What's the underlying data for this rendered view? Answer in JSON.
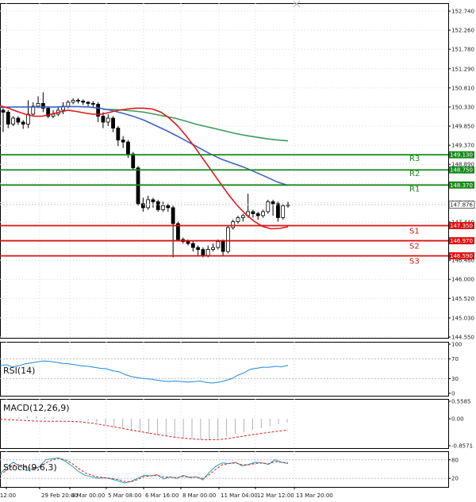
{
  "chart_data": {
    "type": "candlestick",
    "time_labels": [
      "12:00",
      "29 Feb 20:00",
      "4 Mar 00:00",
      "5 Mar 08:00",
      "6 Mar 16:00",
      "8 Mar 00:00",
      "11 Mar 04:00",
      "12 Mar 12:00",
      "13 Mar 20:00"
    ],
    "price_axis": {
      "ticks": [
        "152.740",
        "152.260",
        "151.780",
        "151.290",
        "150.810",
        "150.330",
        "149.850",
        "149.370",
        "148.890",
        "148.410",
        "147.930",
        "147.440",
        "146.960",
        "146.480",
        "146.000",
        "145.520",
        "145.030",
        "144.550"
      ],
      "range": [
        144.55,
        152.74
      ]
    },
    "current_price": "147.876",
    "levels": [
      {
        "name": "R3",
        "value": "149.130",
        "color": "#1a8a1a"
      },
      {
        "name": "R2",
        "value": "148.750",
        "color": "#1a8a1a"
      },
      {
        "name": "R1",
        "value": "148.370",
        "color": "#1a8a1a"
      },
      {
        "name": "S1",
        "value": "147.350",
        "color": "#dd1111"
      },
      {
        "name": "S2",
        "value": "146.970",
        "color": "#dd1111"
      },
      {
        "name": "S3",
        "value": "146.590",
        "color": "#dd1111"
      }
    ],
    "candles": [
      [
        150.25,
        150.2,
        149.7,
        150.3
      ],
      [
        150.2,
        149.9,
        149.8,
        150.25
      ],
      [
        149.9,
        150.05,
        149.85,
        150.1
      ],
      [
        150.05,
        149.95,
        149.88,
        150.1
      ],
      [
        149.95,
        149.9,
        149.78,
        150.0
      ],
      [
        149.9,
        150.15,
        149.8,
        150.5
      ],
      [
        150.15,
        150.35,
        150.1,
        150.45
      ],
      [
        150.35,
        150.42,
        150.3,
        150.6
      ],
      [
        150.42,
        150.3,
        150.2,
        150.7
      ],
      [
        150.3,
        150.1,
        150.05,
        150.35
      ],
      [
        150.1,
        150.15,
        150.05,
        150.25
      ],
      [
        150.15,
        150.25,
        150.1,
        150.35
      ],
      [
        150.25,
        150.35,
        150.15,
        150.45
      ],
      [
        150.35,
        150.45,
        150.3,
        150.5
      ],
      [
        150.45,
        150.5,
        150.4,
        150.55
      ],
      [
        150.5,
        150.48,
        150.42,
        150.55
      ],
      [
        150.48,
        150.45,
        150.38,
        150.52
      ],
      [
        150.45,
        150.42,
        150.35,
        150.48
      ],
      [
        150.42,
        150.4,
        150.3,
        150.48
      ],
      [
        150.4,
        150.1,
        149.95,
        150.45
      ],
      [
        150.1,
        149.95,
        149.8,
        150.2
      ],
      [
        149.95,
        150.05,
        149.85,
        150.15
      ],
      [
        150.05,
        149.8,
        149.7,
        150.1
      ],
      [
        149.8,
        149.5,
        149.35,
        149.85
      ],
      [
        149.5,
        149.45,
        149.3,
        149.6
      ],
      [
        149.45,
        149.15,
        149.05,
        149.5
      ],
      [
        149.15,
        148.8,
        148.75,
        149.2
      ],
      [
        148.8,
        147.9,
        147.85,
        148.85
      ],
      [
        147.9,
        147.8,
        147.7,
        148.05
      ],
      [
        147.8,
        148.0,
        147.75,
        148.1
      ],
      [
        148.0,
        147.95,
        147.8,
        148.05
      ],
      [
        147.95,
        147.75,
        147.7,
        148.0
      ],
      [
        147.75,
        147.85,
        147.7,
        147.95
      ],
      [
        147.85,
        147.8,
        147.7,
        147.9
      ],
      [
        147.8,
        147.4,
        146.55,
        147.85
      ],
      [
        147.4,
        147.0,
        146.95,
        147.45
      ],
      [
        147.0,
        146.95,
        146.9,
        147.05
      ],
      [
        146.95,
        146.9,
        146.85,
        147.0
      ],
      [
        146.9,
        146.8,
        146.7,
        146.95
      ],
      [
        146.8,
        146.75,
        146.6,
        146.85
      ],
      [
        146.75,
        146.6,
        146.55,
        146.8
      ],
      [
        146.6,
        146.75,
        146.55,
        146.85
      ],
      [
        146.75,
        146.8,
        146.7,
        146.9
      ],
      [
        146.8,
        146.95,
        146.75,
        147.0
      ],
      [
        146.95,
        146.7,
        146.6,
        147.0
      ],
      [
        146.7,
        147.3,
        146.65,
        147.35
      ],
      [
        147.3,
        147.45,
        147.25,
        147.5
      ],
      [
        147.45,
        147.55,
        147.4,
        147.6
      ],
      [
        147.55,
        147.6,
        147.45,
        147.65
      ],
      [
        147.6,
        147.7,
        147.55,
        148.15
      ],
      [
        147.7,
        147.65,
        147.55,
        147.75
      ],
      [
        147.65,
        147.6,
        147.5,
        147.7
      ],
      [
        147.6,
        147.7,
        147.55,
        147.75
      ],
      [
        147.7,
        147.95,
        147.65,
        148.0
      ],
      [
        147.95,
        147.9,
        147.6,
        148.0
      ],
      [
        147.9,
        147.55,
        147.45,
        147.95
      ],
      [
        147.55,
        147.85,
        147.5,
        147.9
      ],
      [
        147.85,
        147.88,
        147.8,
        147.95
      ]
    ],
    "ma_red": [
      150.36,
      150.3,
      150.22,
      150.15,
      150.1,
      150.1,
      150.15,
      150.2,
      150.25,
      150.22,
      150.18,
      150.15,
      150.15,
      150.2,
      150.25,
      150.28,
      150.3,
      150.3,
      150.28,
      150.2,
      150.05,
      149.85,
      149.6,
      149.32,
      149.02,
      148.72,
      148.42,
      148.12,
      147.86,
      147.64,
      147.46,
      147.33,
      147.27,
      147.28,
      147.32
    ],
    "ma_blue": [
      150.32,
      150.33,
      150.33,
      150.33,
      150.33,
      150.33,
      150.34,
      150.34,
      150.33,
      150.3,
      150.25,
      150.18,
      150.1,
      150.0,
      149.87,
      149.74,
      149.6,
      149.45,
      149.3,
      149.15,
      149.02,
      148.92,
      148.82,
      148.7,
      148.58,
      148.45,
      148.36
    ],
    "ma_green": [
      150.27,
      150.27,
      150.25,
      150.23,
      150.2,
      150.15,
      150.1,
      150.05,
      149.98,
      149.9,
      149.84,
      149.78,
      149.72,
      149.66,
      149.61,
      149.57,
      149.53,
      149.5,
      149.48
    ],
    "indicators": [
      {
        "name": "RSI(14)",
        "ticks": [
          "100",
          "70",
          "30",
          "0"
        ],
        "range": [
          0,
          100
        ],
        "values": [
          56,
          58,
          54,
          56,
          60,
          62,
          64,
          66,
          65,
          63,
          61,
          60,
          58,
          56,
          55,
          53,
          51,
          50,
          46,
          44,
          38,
          34,
          32,
          30,
          29,
          27,
          25,
          24,
          25,
          24,
          23,
          24,
          25,
          22,
          21,
          23,
          26,
          30,
          37,
          42,
          49,
          51,
          53,
          53,
          55,
          54,
          57
        ]
      },
      {
        "name": "MACD(12,26,9)",
        "ticks": [
          "0.5585",
          "0.00",
          "-0.8571"
        ],
        "range": [
          -0.8571,
          0.5585
        ],
        "histogram": [
          0.02,
          0.04,
          0.06,
          0.1,
          0.08,
          0.06,
          0.04,
          0.02,
          0.0,
          -0.02,
          -0.06,
          -0.12,
          -0.18,
          -0.24,
          -0.3,
          -0.36,
          -0.42,
          -0.48,
          -0.52,
          -0.56,
          -0.6,
          -0.62,
          -0.64,
          -0.66,
          -0.66,
          -0.62,
          -0.56,
          -0.5,
          -0.44,
          -0.36,
          -0.3,
          -0.24,
          -0.18,
          -0.12
        ],
        "signal": [
          -0.02,
          -0.03,
          -0.05,
          -0.07,
          -0.08,
          -0.08,
          -0.08,
          -0.1,
          -0.14,
          -0.2,
          -0.26,
          -0.33,
          -0.4,
          -0.46,
          -0.52,
          -0.58,
          -0.62,
          -0.65,
          -0.67,
          -0.66,
          -0.62,
          -0.56,
          -0.5,
          -0.45,
          -0.4,
          -0.36
        ]
      },
      {
        "name": "Stoch(9,6,3)",
        "ticks": [
          "80",
          "20"
        ],
        "range": [
          0,
          100
        ],
        "main": [
          35,
          55,
          72,
          60,
          45,
          50,
          58,
          80,
          84,
          86,
          75,
          60,
          42,
          30,
          25,
          20,
          22,
          18,
          12,
          5,
          10,
          20,
          30,
          28,
          32,
          18,
          25,
          20,
          30,
          22,
          25,
          15,
          40,
          60,
          70,
          68,
          72,
          60,
          65,
          72,
          70,
          65,
          80,
          72,
          68
        ],
        "signal": [
          32,
          46,
          62,
          65,
          55,
          52,
          55,
          70,
          80,
          85,
          80,
          68,
          52,
          38,
          30,
          24,
          22,
          20,
          16,
          10,
          9,
          16,
          26,
          28,
          30,
          24,
          24,
          22,
          26,
          24,
          24,
          20,
          32,
          50,
          64,
          68,
          70,
          64,
          64,
          68,
          70,
          67,
          74,
          72,
          70
        ]
      }
    ]
  }
}
